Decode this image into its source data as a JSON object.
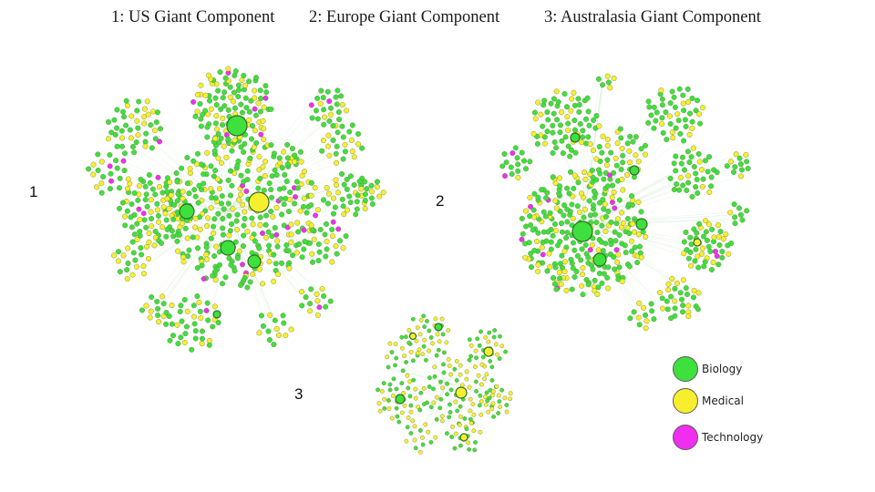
{
  "titles": {
    "t1": "1: US Giant Component",
    "t2": "2: Europe Giant Component",
    "t3": "3: Australasia Giant Component"
  },
  "numbers": {
    "n1": "1",
    "n2": "2",
    "n3": "3"
  },
  "colors": {
    "Biology": "#3ee03e",
    "Medical": "#f7ef2e",
    "Technology": "#f02ef0",
    "edge": "#cfeacf",
    "stroke": "#6b7a3c"
  },
  "legend": [
    {
      "label": "Biology",
      "color": "#3ee03e"
    },
    {
      "label": "Medical",
      "color": "#f7ef2e"
    },
    {
      "label": "Technology",
      "color": "#f02ef0"
    }
  ]
}
